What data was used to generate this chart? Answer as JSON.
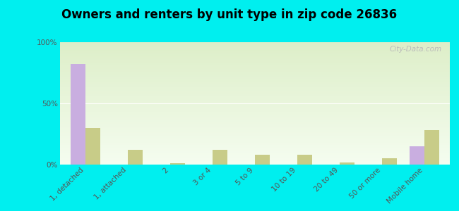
{
  "title": "Owners and renters by unit type in zip code 26836",
  "categories": [
    "1, detached",
    "1, attached",
    "2",
    "3 or 4",
    "5 to 9",
    "10 to 19",
    "20 to 49",
    "50 or more",
    "Mobile home"
  ],
  "owner_values": [
    82,
    0,
    0,
    0,
    0,
    0,
    0,
    0,
    15
  ],
  "renter_values": [
    30,
    12,
    1,
    12,
    8,
    8,
    2,
    5,
    28
  ],
  "owner_color": "#c9aee0",
  "renter_color": "#c8cc88",
  "background_color": "#00efef",
  "plot_bg_top_color": "#ddeec8",
  "plot_bg_bottom_color": "#f5fdf0",
  "ylim": [
    0,
    100
  ],
  "yticks": [
    0,
    50,
    100
  ],
  "ytick_labels": [
    "0%",
    "50%",
    "100%"
  ],
  "bar_width": 0.35,
  "watermark": "City-Data.com",
  "title_fontsize": 12,
  "tick_fontsize": 7.5,
  "legend_fontsize": 8.5
}
